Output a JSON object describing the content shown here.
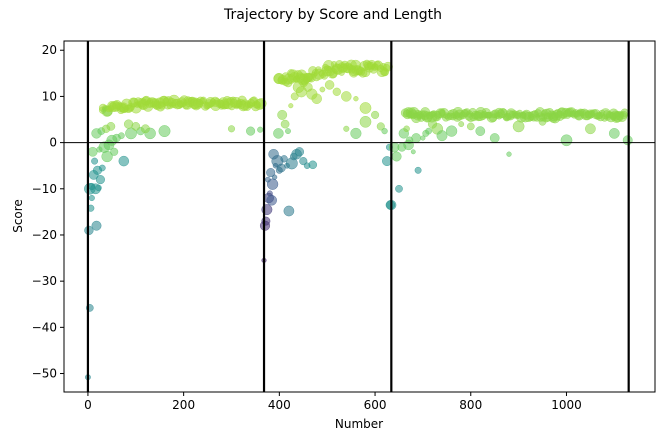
{
  "chart_data": {
    "type": "scatter",
    "title": "Trajectory by Score and Length",
    "xlabel": "Number",
    "ylabel": "Score",
    "xlim": [
      -50,
      1185
    ],
    "ylim": [
      -54,
      22
    ],
    "xticks": [
      0,
      200,
      400,
      600,
      800,
      1000
    ],
    "yticks": [
      -50,
      -40,
      -30,
      -20,
      -10,
      0,
      10,
      20
    ],
    "ytick_labels": [
      "−50",
      "−40",
      "−30",
      "−20",
      "−10",
      "0",
      "10",
      "20"
    ],
    "grid": false,
    "hline_y": 0,
    "vlines_x": [
      0,
      368,
      634,
      1130
    ],
    "segments": [
      {
        "name": "",
        "x_range": [
          0,
          368
        ],
        "plateau": 8.5,
        "points": [
          [
            0,
            -50.8
          ],
          [
            4,
            -35.8
          ],
          [
            2,
            -19.0
          ],
          [
            18,
            -18.0
          ],
          [
            6,
            -14.2
          ],
          [
            8,
            -12.0
          ],
          [
            4,
            -10.0
          ],
          [
            16,
            -10.0
          ],
          [
            22,
            -9.8
          ],
          [
            8,
            -9.5
          ],
          [
            26,
            -8.0
          ],
          [
            12,
            -7.0
          ],
          [
            20,
            -6.0
          ],
          [
            30,
            -5.5
          ],
          [
            14,
            -4.0
          ],
          [
            40,
            -3.0
          ],
          [
            10,
            -2.0
          ],
          [
            24,
            -1.5
          ],
          [
            34,
            -1.0
          ],
          [
            44,
            -0.5
          ],
          [
            50,
            0.5
          ],
          [
            60,
            1.0
          ],
          [
            70,
            1.5
          ],
          [
            18,
            2.0
          ],
          [
            28,
            2.5
          ],
          [
            38,
            3.0
          ],
          [
            48,
            3.5
          ],
          [
            90,
            2.0
          ],
          [
            110,
            2.5
          ],
          [
            130,
            2.0
          ],
          [
            75,
            -4.0
          ],
          [
            55,
            -2.0
          ],
          [
            85,
            4.0
          ],
          [
            100,
            3.5
          ],
          [
            120,
            3.0
          ],
          [
            160,
            2.5
          ],
          [
            300,
            3.0
          ],
          [
            340,
            2.5
          ],
          [
            360,
            2.8
          ]
        ]
      },
      {
        "name": "",
        "x_range": [
          368,
          634
        ],
        "plateau": 16.0,
        "points": [
          [
            368,
            -25.5
          ],
          [
            370,
            -18.0
          ],
          [
            372,
            -17.0
          ],
          [
            374,
            -14.5
          ],
          [
            378,
            -12.0
          ],
          [
            380,
            -11.0
          ],
          [
            384,
            -12.5
          ],
          [
            386,
            -9.0
          ],
          [
            390,
            -7.5
          ],
          [
            376,
            -8.0
          ],
          [
            382,
            -6.5
          ],
          [
            392,
            -5.0
          ],
          [
            396,
            -4.0
          ],
          [
            400,
            -6.0
          ],
          [
            404,
            -5.5
          ],
          [
            410,
            -3.5
          ],
          [
            416,
            -5.0
          ],
          [
            420,
            -14.8
          ],
          [
            426,
            -4.5
          ],
          [
            430,
            -3.0
          ],
          [
            436,
            -2.5
          ],
          [
            442,
            -2.0
          ],
          [
            450,
            -4.0
          ],
          [
            458,
            -5.0
          ],
          [
            470,
            -4.8
          ],
          [
            388,
            -2.5
          ],
          [
            398,
            2.0
          ],
          [
            406,
            6.0
          ],
          [
            412,
            4.0
          ],
          [
            418,
            2.5
          ],
          [
            424,
            8.0
          ],
          [
            432,
            10.0
          ],
          [
            440,
            12.0
          ],
          [
            446,
            11.0
          ],
          [
            452,
            13.0
          ],
          [
            460,
            12.0
          ],
          [
            468,
            10.5
          ],
          [
            478,
            9.5
          ],
          [
            490,
            11.5
          ],
          [
            505,
            12.5
          ],
          [
            520,
            11.0
          ],
          [
            540,
            10.0
          ],
          [
            560,
            9.5
          ],
          [
            580,
            7.5
          ],
          [
            600,
            6.0
          ],
          [
            612,
            3.5
          ],
          [
            620,
            2.5
          ],
          [
            630,
            -1.0
          ],
          [
            625,
            -4.0
          ],
          [
            632,
            -13.5
          ],
          [
            580,
            4.5
          ],
          [
            560,
            2.0
          ],
          [
            540,
            3.0
          ]
        ]
      },
      {
        "name": "",
        "x_range": [
          634,
          1130
        ],
        "plateau": 6.0,
        "points": [
          [
            634,
            -13.5
          ],
          [
            640,
            -1.0
          ],
          [
            645,
            -3.0
          ],
          [
            650,
            -10.0
          ],
          [
            656,
            -1.0
          ],
          [
            660,
            2.0
          ],
          [
            666,
            3.0
          ],
          [
            672,
            0.5
          ],
          [
            680,
            -2.0
          ],
          [
            690,
            -6.0
          ],
          [
            700,
            1.0
          ],
          [
            712,
            2.5
          ],
          [
            720,
            4.0
          ],
          [
            730,
            3.0
          ],
          [
            740,
            1.5
          ],
          [
            760,
            2.5
          ],
          [
            780,
            4.0
          ],
          [
            800,
            3.5
          ],
          [
            820,
            2.5
          ],
          [
            850,
            1.0
          ],
          [
            880,
            -2.5
          ],
          [
            900,
            3.5
          ],
          [
            950,
            4.5
          ],
          [
            1000,
            0.5
          ],
          [
            1050,
            3.0
          ],
          [
            1100,
            2.0
          ],
          [
            1128,
            0.5
          ],
          [
            670,
            -0.5
          ],
          [
            686,
            1.0
          ],
          [
            706,
            2.0
          ]
        ]
      }
    ]
  }
}
